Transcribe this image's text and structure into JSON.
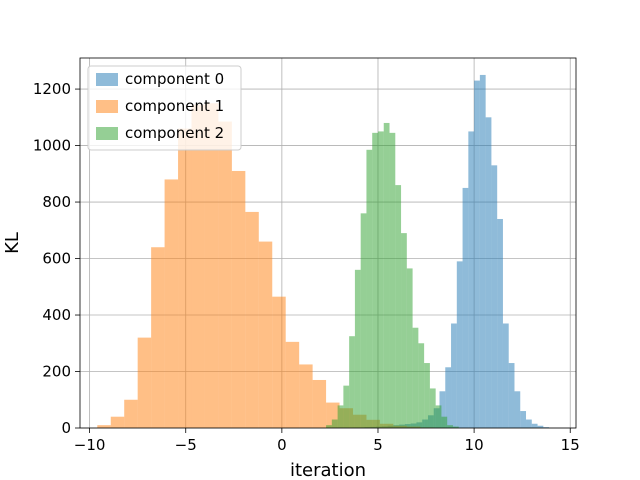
{
  "chart_data": {
    "type": "histogram",
    "xlabel": "iteration",
    "ylabel": "KL",
    "xlim": [
      -10.5,
      15.3
    ],
    "ylim": [
      0,
      1310
    ],
    "xticks": [
      -10,
      -5,
      0,
      5,
      10,
      15
    ],
    "xtick_labels": [
      "−10",
      "−5",
      "0",
      "5",
      "10",
      "15"
    ],
    "yticks": [
      0,
      200,
      400,
      600,
      800,
      1000,
      1200
    ],
    "grid": true,
    "legend_position": "top-left",
    "series": [
      {
        "name": "component 0",
        "color": "#1f77b4",
        "opacity": 0.5,
        "bin_edges": [
          2.8,
          3.1,
          3.4,
          3.7,
          4.0,
          4.3,
          4.6,
          4.9,
          5.2,
          5.5,
          5.8,
          6.1,
          6.4,
          6.7,
          7.0,
          7.3,
          7.6,
          7.9,
          8.2,
          8.5,
          8.8,
          9.1,
          9.4,
          9.7,
          10.0,
          10.3,
          10.6,
          10.9,
          11.2,
          11.5,
          11.8,
          12.1,
          12.4,
          12.7,
          13.0,
          13.3,
          13.6,
          13.9
        ],
        "counts": [
          1,
          1,
          1,
          2,
          2,
          3,
          4,
          5,
          6,
          8,
          10,
          12,
          14,
          16,
          20,
          30,
          45,
          70,
          130,
          215,
          370,
          590,
          850,
          1050,
          1230,
          1250,
          1100,
          930,
          740,
          370,
          230,
          130,
          60,
          30,
          15,
          8,
          3
        ]
      },
      {
        "name": "component 1",
        "color": "#ff7f0e",
        "opacity": 0.5,
        "bin_edges": [
          -9.6,
          -8.9,
          -8.2,
          -7.5,
          -6.8,
          -6.1,
          -5.4,
          -4.7,
          -4.0,
          -3.3,
          -2.6,
          -1.9,
          -1.2,
          -0.5,
          0.2,
          0.9,
          1.6,
          2.3,
          3.0,
          3.7,
          4.4,
          5.1,
          5.8,
          6.5,
          7.2,
          7.9,
          8.6
        ],
        "counts": [
          10,
          40,
          100,
          320,
          640,
          880,
          1060,
          1145,
          1150,
          1085,
          910,
          765,
          660,
          465,
          305,
          225,
          170,
          90,
          70,
          47,
          29,
          15,
          8,
          5,
          2,
          1
        ]
      },
      {
        "name": "component 2",
        "color": "#2ca02c",
        "opacity": 0.5,
        "bin_edges": [
          2.3,
          2.6,
          2.9,
          3.2,
          3.5,
          3.8,
          4.1,
          4.4,
          4.7,
          5.0,
          5.3,
          5.6,
          5.9,
          6.2,
          6.5,
          6.8,
          7.1,
          7.4,
          7.7,
          8.0,
          8.3,
          8.6,
          8.9,
          9.2
        ],
        "counts": [
          10,
          30,
          80,
          150,
          325,
          560,
          760,
          985,
          1045,
          1050,
          1080,
          1045,
          860,
          690,
          565,
          355,
          300,
          230,
          140,
          80,
          40,
          10,
          5
        ]
      }
    ]
  }
}
